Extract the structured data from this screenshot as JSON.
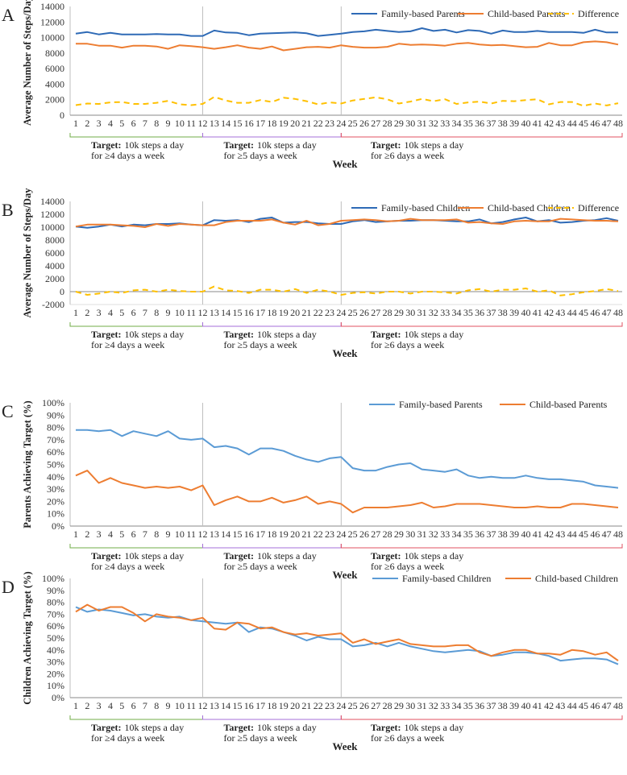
{
  "colors": {
    "blue_dark": "#2e6ab6",
    "blue_light": "#5b9bd5",
    "orange": "#ed7d31",
    "yellow": "#ffc000",
    "green": "#70ad47",
    "purple": "#a56fd8",
    "red": "#e05060",
    "divider": "#bfbfbf"
  },
  "targets": [
    {
      "bold": "Target:",
      "line1": "10k steps a day",
      "line2": "for ≥4 days a week"
    },
    {
      "bold": "Target:",
      "line1": "10k steps a day",
      "line2": "for ≥5 days a week"
    },
    {
      "bold": "Target:",
      "line1": "10k steps a day",
      "line2": "for ≥6 days a week"
    }
  ],
  "chart_data": [
    {
      "type": "line",
      "panel_label": "A",
      "ylabel": "Average Number of Steps/Day",
      "xlabel": "Week",
      "ylim": [
        0,
        14000
      ],
      "ystep": 2000,
      "yformat": "number",
      "legend": "top-right",
      "x": [
        1,
        2,
        3,
        4,
        5,
        6,
        7,
        8,
        9,
        10,
        11,
        12,
        13,
        14,
        15,
        16,
        17,
        18,
        19,
        20,
        21,
        22,
        23,
        24,
        25,
        26,
        27,
        28,
        29,
        30,
        31,
        32,
        33,
        34,
        35,
        36,
        37,
        38,
        39,
        40,
        41,
        42,
        43,
        44,
        45,
        46,
        47,
        48
      ],
      "series": [
        {
          "name": "Family-based Parents",
          "color": "#2e6ab6",
          "dash": false,
          "values": [
            10500,
            10700,
            10400,
            10600,
            10400,
            10400,
            10400,
            10450,
            10400,
            10400,
            10200,
            10200,
            10900,
            10650,
            10600,
            10300,
            10500,
            10550,
            10600,
            10650,
            10550,
            10200,
            10350,
            10500,
            10700,
            10800,
            11000,
            10850,
            10700,
            10800,
            11200,
            10850,
            11000,
            10650,
            10950,
            10850,
            10500,
            10900,
            10700,
            10700,
            10850,
            10700,
            10700,
            10700,
            10600,
            11000,
            10650,
            10650
          ]
        },
        {
          "name": "Child-based Parents",
          "color": "#ed7d31",
          "dash": false,
          "values": [
            9200,
            9200,
            8950,
            8950,
            8700,
            8950,
            8950,
            8850,
            8550,
            9000,
            8900,
            8750,
            8550,
            8750,
            9000,
            8700,
            8550,
            8850,
            8350,
            8550,
            8750,
            8800,
            8700,
            9000,
            8800,
            8700,
            8700,
            8800,
            9200,
            9050,
            9100,
            9050,
            8950,
            9200,
            9300,
            9100,
            9000,
            9050,
            8900,
            8750,
            8800,
            9300,
            9000,
            9000,
            9400,
            9500,
            9400,
            9100
          ]
        },
        {
          "name": "Difference",
          "color": "#ffc000",
          "dash": true,
          "values": [
            1300,
            1500,
            1450,
            1650,
            1700,
            1450,
            1450,
            1600,
            1850,
            1400,
            1300,
            1450,
            2350,
            1900,
            1600,
            1600,
            1950,
            1700,
            2250,
            2100,
            1800,
            1400,
            1650,
            1500,
            1900,
            2100,
            2300,
            2050,
            1500,
            1750,
            2100,
            1800,
            2050,
            1450,
            1650,
            1750,
            1500,
            1850,
            1800,
            1950,
            2050,
            1400,
            1700,
            1700,
            1200,
            1500,
            1250,
            1550
          ]
        }
      ]
    },
    {
      "type": "line",
      "panel_label": "B",
      "ylabel": "Average Number of Steps/Day",
      "xlabel": "Week",
      "ylim": [
        -2000,
        14000
      ],
      "ystep": 2000,
      "yformat": "number",
      "legend": "top-right",
      "x": [
        1,
        2,
        3,
        4,
        5,
        6,
        7,
        8,
        9,
        10,
        11,
        12,
        13,
        14,
        15,
        16,
        17,
        18,
        19,
        20,
        21,
        22,
        23,
        24,
        25,
        26,
        27,
        28,
        29,
        30,
        31,
        32,
        33,
        34,
        35,
        36,
        37,
        38,
        39,
        40,
        41,
        42,
        43,
        44,
        45,
        46,
        47,
        48
      ],
      "series": [
        {
          "name": "Family-based Children",
          "color": "#2e6ab6",
          "dash": false,
          "values": [
            10100,
            9900,
            10100,
            10400,
            10100,
            10400,
            10300,
            10500,
            10500,
            10600,
            10400,
            10300,
            11100,
            11000,
            11100,
            10800,
            11300,
            11500,
            10700,
            10800,
            10800,
            10600,
            10500,
            10500,
            10900,
            11100,
            10800,
            10900,
            11000,
            11000,
            11100,
            11100,
            11000,
            10900,
            10900,
            11200,
            10600,
            10800,
            11200,
            11500,
            10900,
            11100,
            10700,
            10800,
            11000,
            11100,
            11400,
            11000
          ]
        },
        {
          "name": "Child-based Children",
          "color": "#ed7d31",
          "dash": false,
          "values": [
            10100,
            10400,
            10400,
            10400,
            10300,
            10200,
            10000,
            10500,
            10200,
            10500,
            10400,
            10300,
            10300,
            10800,
            11000,
            11000,
            11000,
            11200,
            10700,
            10400,
            11000,
            10300,
            10500,
            11000,
            11100,
            11200,
            11100,
            10900,
            11000,
            11300,
            11100,
            11100,
            11100,
            11200,
            10700,
            10800,
            10600,
            10500,
            10900,
            11000,
            10900,
            10900,
            11300,
            11200,
            11100,
            11000,
            11000,
            10900
          ]
        },
        {
          "name": "Difference",
          "color": "#ffc000",
          "dash": true,
          "values": [
            0,
            -500,
            -300,
            0,
            -200,
            200,
            300,
            0,
            300,
            100,
            0,
            0,
            800,
            200,
            100,
            -200,
            300,
            300,
            0,
            400,
            -200,
            300,
            0,
            -500,
            -200,
            -100,
            -300,
            0,
            0,
            -300,
            0,
            0,
            -100,
            -300,
            200,
            400,
            0,
            300,
            300,
            500,
            0,
            200,
            -600,
            -400,
            -100,
            100,
            400,
            100
          ]
        }
      ]
    },
    {
      "type": "line",
      "panel_label": "C",
      "ylabel": "Parents Achieving Target (%)",
      "xlabel": "Week",
      "ylim": [
        0,
        100
      ],
      "ystep": 10,
      "yformat": "percent",
      "legend": "top-right",
      "x": [
        1,
        2,
        3,
        4,
        5,
        6,
        7,
        8,
        9,
        10,
        11,
        12,
        13,
        14,
        15,
        16,
        17,
        18,
        19,
        20,
        21,
        22,
        23,
        24,
        25,
        26,
        27,
        28,
        29,
        30,
        31,
        32,
        33,
        34,
        35,
        36,
        37,
        38,
        39,
        40,
        41,
        42,
        43,
        44,
        45,
        46,
        47,
        48
      ],
      "series": [
        {
          "name": "Family-based Parents",
          "color": "#5b9bd5",
          "dash": false,
          "values": [
            78,
            78,
            77,
            78,
            73,
            77,
            75,
            73,
            77,
            71,
            70,
            71,
            64,
            65,
            63,
            58,
            63,
            63,
            61,
            57,
            54,
            52,
            55,
            56,
            47,
            45,
            45,
            48,
            50,
            51,
            46,
            45,
            44,
            46,
            41,
            39,
            40,
            39,
            39,
            41,
            39,
            38,
            38,
            37,
            36,
            33,
            32,
            31
          ]
        },
        {
          "name": "Child-based Parents",
          "color": "#ed7d31",
          "dash": false,
          "values": [
            41,
            45,
            35,
            39,
            35,
            33,
            31,
            32,
            31,
            32,
            29,
            33,
            17,
            21,
            24,
            20,
            20,
            23,
            19,
            21,
            24,
            18,
            20,
            18,
            11,
            15,
            15,
            15,
            16,
            17,
            19,
            15,
            16,
            18,
            18,
            18,
            17,
            16,
            15,
            15,
            16,
            15,
            15,
            18,
            18,
            17,
            16,
            15
          ]
        }
      ]
    },
    {
      "type": "line",
      "panel_label": "D",
      "ylabel": "Children Achieving Target (%)",
      "xlabel": "Week",
      "ylim": [
        0,
        100
      ],
      "ystep": 10,
      "yformat": "percent",
      "legend": "top-right",
      "x": [
        1,
        2,
        3,
        4,
        5,
        6,
        7,
        8,
        9,
        10,
        11,
        12,
        13,
        14,
        15,
        16,
        17,
        18,
        19,
        20,
        21,
        22,
        23,
        24,
        25,
        26,
        27,
        28,
        29,
        30,
        31,
        32,
        33,
        34,
        35,
        36,
        37,
        38,
        39,
        40,
        41,
        42,
        43,
        44,
        45,
        46,
        47,
        48
      ],
      "series": [
        {
          "name": "Family-based Children",
          "color": "#5b9bd5",
          "dash": false,
          "values": [
            76,
            72,
            74,
            73,
            71,
            69,
            70,
            68,
            67,
            68,
            65,
            64,
            63,
            62,
            63,
            55,
            59,
            58,
            55,
            52,
            48,
            51,
            49,
            49,
            43,
            44,
            46,
            43,
            46,
            43,
            41,
            39,
            38,
            39,
            40,
            39,
            35,
            36,
            38,
            38,
            37,
            35,
            31,
            32,
            33,
            33,
            32,
            28
          ]
        },
        {
          "name": "Child-based Children",
          "color": "#ed7d31",
          "dash": false,
          "values": [
            72,
            78,
            73,
            76,
            76,
            71,
            64,
            70,
            68,
            67,
            65,
            67,
            58,
            57,
            63,
            62,
            58,
            59,
            55,
            53,
            54,
            52,
            53,
            54,
            46,
            49,
            45,
            47,
            49,
            45,
            44,
            43,
            43,
            44,
            44,
            38,
            35,
            38,
            40,
            40,
            37,
            37,
            36,
            40,
            39,
            36,
            38,
            31
          ]
        }
      ]
    }
  ]
}
